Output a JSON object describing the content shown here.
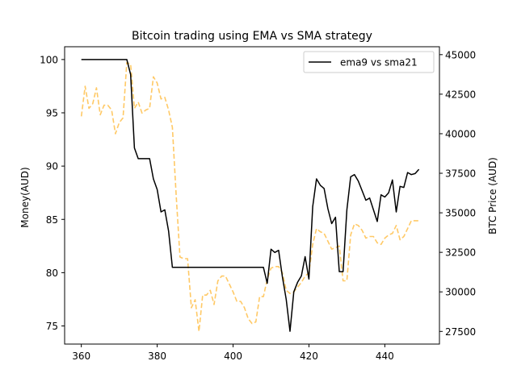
{
  "chart_data": {
    "type": "line",
    "title": "Bitcoin trading using EMA vs SMA strategy",
    "xlabel": "",
    "ylabel": "Money(AUD)",
    "y2label": "BTC Price (AUD)",
    "xlim": [
      355.6,
      454.4
    ],
    "ylim": [
      73.3,
      101.2
    ],
    "y2lim": [
      26700,
      45500
    ],
    "xticks": [
      360,
      380,
      400,
      420,
      440
    ],
    "yticks": [
      75,
      80,
      85,
      90,
      95,
      100
    ],
    "y2ticks": [
      27500,
      30000,
      32500,
      35000,
      37500,
      40000,
      42500,
      45000
    ],
    "legend_placement": "top-right",
    "grid": false,
    "colors": {
      "money": "#000000",
      "price": "#ffc966"
    },
    "series": [
      {
        "name": "ema9 vs sma21",
        "axis": "left",
        "style": "solid",
        "x": [
          360,
          361,
          362,
          363,
          364,
          365,
          366,
          367,
          368,
          369,
          370,
          371,
          372,
          373,
          374,
          375,
          376,
          377,
          378,
          379,
          380,
          381,
          382,
          383,
          384,
          385,
          386,
          387,
          388,
          389,
          390,
          391,
          392,
          393,
          394,
          395,
          396,
          397,
          398,
          399,
          400,
          401,
          402,
          403,
          404,
          405,
          406,
          407,
          408,
          409,
          410,
          411,
          412,
          413,
          414,
          415,
          416,
          417,
          418,
          419,
          420,
          421,
          422,
          423,
          424,
          425,
          426,
          427,
          428,
          429,
          430,
          431,
          432,
          433,
          434,
          435,
          436,
          437,
          438,
          439,
          440,
          441,
          442,
          443,
          444,
          445,
          446,
          447,
          448,
          449
        ],
        "values": [
          100,
          100,
          100,
          100,
          100,
          100,
          100,
          100,
          100,
          100,
          100,
          100,
          100,
          98.6,
          91.7,
          90.7,
          90.7,
          90.7,
          90.7,
          88.8,
          87.8,
          85.7,
          85.9,
          83.9,
          80.5,
          80.5,
          80.5,
          80.5,
          80.5,
          80.5,
          80.5,
          80.5,
          80.5,
          80.5,
          80.5,
          80.5,
          80.5,
          80.5,
          80.5,
          80.5,
          80.5,
          80.5,
          80.5,
          80.5,
          80.5,
          80.5,
          80.5,
          80.5,
          80.5,
          79.0,
          82.2,
          81.9,
          82.1,
          79.6,
          77.5,
          74.5,
          78.2,
          79.1,
          79.7,
          81.5,
          79.4,
          86.2,
          88.8,
          88.2,
          87.9,
          86.0,
          84.6,
          85.2,
          80.1,
          80.1,
          85.9,
          89.0,
          89.2,
          88.6,
          87.7,
          86.8,
          87.0,
          85.9,
          84.8,
          87.3,
          87.1,
          87.5,
          88.7,
          85.7,
          88.1,
          88.0,
          89.4,
          89.2,
          89.3,
          89.7
        ]
      },
      {
        "name": "BTC Price",
        "axis": "right",
        "style": "dashed",
        "x": [
          360,
          361,
          362,
          363,
          364,
          365,
          366,
          367,
          368,
          369,
          370,
          371,
          372,
          373,
          374,
          375,
          376,
          377,
          378,
          379,
          380,
          381,
          382,
          383,
          384,
          385,
          386,
          387,
          388,
          389,
          390,
          391,
          392,
          393,
          394,
          395,
          396,
          397,
          398,
          399,
          400,
          401,
          402,
          403,
          404,
          405,
          406,
          407,
          408,
          409,
          410,
          411,
          412,
          413,
          414,
          415,
          416,
          417,
          418,
          419,
          420,
          421,
          422,
          423,
          424,
          425,
          426,
          427,
          428,
          429,
          430,
          431,
          432,
          433,
          434,
          435,
          436,
          437,
          438,
          439,
          440,
          441,
          442,
          443,
          444,
          445,
          446,
          447,
          448,
          449
        ],
        "values": [
          41100,
          43000,
          41600,
          41900,
          42900,
          41200,
          41800,
          41800,
          41500,
          40000,
          40700,
          41000,
          44500,
          44400,
          41600,
          42000,
          41300,
          41500,
          41600,
          43600,
          43200,
          42200,
          42300,
          41500,
          40400,
          36100,
          32200,
          32100,
          32100,
          29000,
          29500,
          27500,
          29800,
          29800,
          30100,
          29200,
          30700,
          31000,
          31000,
          30500,
          30000,
          29400,
          29400,
          29000,
          28300,
          28000,
          28100,
          29700,
          29700,
          30800,
          31500,
          31600,
          31600,
          31200,
          30100,
          29900,
          30000,
          30300,
          30600,
          31000,
          31200,
          33000,
          34000,
          33800,
          33700,
          33200,
          32700,
          32800,
          32900,
          30700,
          30700,
          33600,
          34300,
          34200,
          33900,
          33400,
          33500,
          33500,
          33100,
          33000,
          33400,
          33600,
          33700,
          34200,
          33300,
          33500,
          34000,
          34500,
          34500,
          34500
        ]
      }
    ]
  }
}
